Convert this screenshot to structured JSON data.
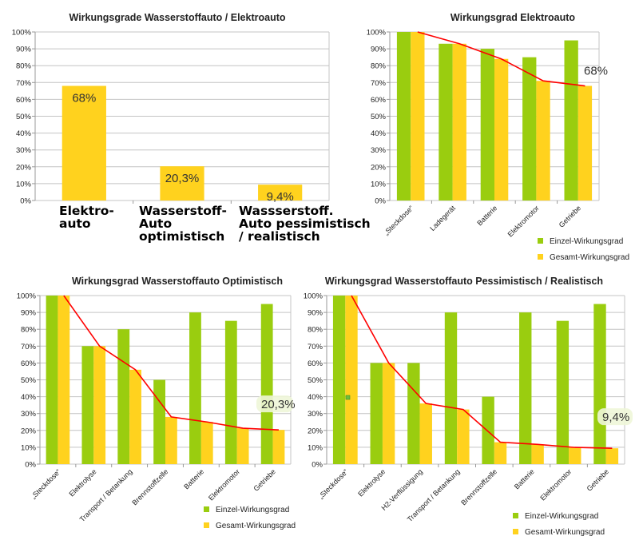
{
  "colors": {
    "einzel": "#9acd0f",
    "gesamt": "#ffd21e",
    "line": "#ff0000",
    "grid": "#c4c4c4",
    "marker": "#6cbd3c"
  },
  "chart_data": [
    {
      "type": "bar",
      "title": "Wirkungsgrade Wasserstoffauto / Elektroauto",
      "categories": [
        "Elektro-auto",
        "Wasserstoff-Auto optimistisch",
        "Wassserstoff. Auto pessimistisch / realistisch"
      ],
      "category_lines": [
        [
          "Elektro-",
          "auto"
        ],
        [
          "Wasserstoff-",
          "Auto",
          "optimistisch"
        ],
        [
          "Wassserstoff.",
          "Auto pessimistisch",
          "/ realistisch"
        ]
      ],
      "values": [
        68,
        20.3,
        9.4
      ],
      "value_labels": [
        "68%",
        "20,3%",
        "9,4%"
      ],
      "ylim": [
        0,
        100
      ],
      "ytick_labels": [
        "0%",
        "10%",
        "20%",
        "30%",
        "40%",
        "50%",
        "60%",
        "70%",
        "80%",
        "90%",
        "100%"
      ],
      "xlabel": "",
      "ylabel": ""
    },
    {
      "type": "bar+line",
      "title": "Wirkungsgrad Elektroauto",
      "categories": [
        "„Steckdose“",
        "Ladegerät",
        "Batterie",
        "Elektromotor",
        "Getriebe"
      ],
      "series": [
        {
          "name": "Einzel-Wirkungsgrad",
          "values": [
            100,
            93,
            90,
            85,
            95
          ]
        },
        {
          "name": "Gesamt-Wirkungsgrad",
          "values": [
            100,
            93,
            84,
            71,
            68
          ]
        }
      ],
      "annotation": "68%",
      "ylim": [
        0,
        100
      ],
      "ytick_labels": [
        "0%",
        "10%",
        "20%",
        "30%",
        "40%",
        "50%",
        "60%",
        "70%",
        "80%",
        "90%",
        "100%"
      ],
      "legend": [
        "Einzel-Wirkungsgrad",
        "Gesamt-Wirkungsgrad"
      ]
    },
    {
      "type": "bar+line",
      "title": "Wirkungsgrad Wasserstoffauto Optimistisch",
      "categories": [
        "„Steckdose“",
        "Elektrolyse",
        "Transport / Betankung",
        "Brennstoffzelle",
        "Batterie",
        "Elektromotor",
        "Getriebe"
      ],
      "series": [
        {
          "name": "Einzel-Wirkungsgrad",
          "values": [
            100,
            70,
            80,
            50,
            90,
            85,
            95
          ]
        },
        {
          "name": "Gesamt-Wirkungsgrad",
          "values": [
            100,
            70,
            56,
            28,
            25,
            21.3,
            20.3
          ]
        }
      ],
      "annotation": "20,3%",
      "ylim": [
        0,
        100
      ],
      "ytick_labels": [
        "0%",
        "10%",
        "20%",
        "30%",
        "40%",
        "50%",
        "60%",
        "70%",
        "80%",
        "90%",
        "100%"
      ],
      "legend": [
        "Einzel-Wirkungsgrad",
        "Gesamt-Wirkungsgrad"
      ]
    },
    {
      "type": "bar+line",
      "title": "Wirkungsgrad Wasserstoffauto Pessimistisch / Realistisch",
      "categories": [
        "„Steckdose“",
        "Elektrolyse",
        "H2-Verflüssigung",
        "Transport / Betankung",
        "Brennstoffzelle",
        "Batterie",
        "Elektromotor",
        "Getriebe"
      ],
      "series": [
        {
          "name": "Einzel-Wirkungsgrad",
          "values": [
            100,
            60,
            60,
            90,
            40,
            90,
            85,
            95
          ]
        },
        {
          "name": "Gesamt-Wirkungsgrad",
          "values": [
            100,
            60,
            36,
            32.4,
            13,
            11.7,
            9.9,
            9.4
          ]
        }
      ],
      "annotation": "9,4%",
      "ylim": [
        0,
        100
      ],
      "ytick_labels": [
        "0%",
        "10%",
        "20%",
        "30%",
        "40%",
        "50%",
        "60%",
        "70%",
        "80%",
        "90%",
        "100%"
      ],
      "legend": [
        "Einzel-Wirkungsgrad",
        "Gesamt-Wirkungsgrad"
      ]
    }
  ]
}
